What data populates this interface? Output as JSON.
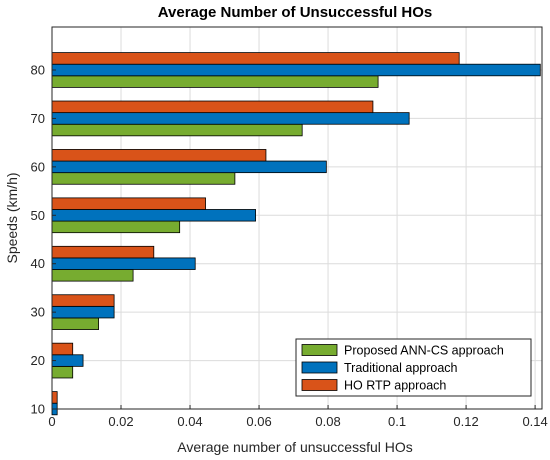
{
  "chart_data": {
    "type": "bar",
    "orientation": "horizontal",
    "title": "Average Number of Unsuccessful HOs",
    "xlabel": "Average number of unsuccessful HOs",
    "ylabel": "Speeds (km/h)",
    "categories": [
      "10",
      "20",
      "30",
      "40",
      "50",
      "60",
      "70",
      "80"
    ],
    "xlim": [
      0,
      0.142
    ],
    "x_ticks": [
      "0",
      "0.02",
      "0.04",
      "0.06",
      "0.08",
      "0.1",
      "0.12",
      "0.14"
    ],
    "grid": true,
    "legend_position": "bottom-right",
    "series": [
      {
        "name": "Proposed ANN-CS approach",
        "color": "#77ac30",
        "values": [
          0.0,
          0.006,
          0.0135,
          0.0235,
          0.037,
          0.053,
          0.0725,
          0.0945
        ]
      },
      {
        "name": "Traditional approach",
        "color": "#0072bd",
        "values": [
          0.0015,
          0.009,
          0.018,
          0.0415,
          0.059,
          0.0795,
          0.1035,
          0.1415
        ]
      },
      {
        "name": "HO RTP approach",
        "color": "#d95319",
        "values": [
          0.0015,
          0.006,
          0.018,
          0.0295,
          0.0445,
          0.062,
          0.093,
          0.118
        ]
      }
    ]
  }
}
